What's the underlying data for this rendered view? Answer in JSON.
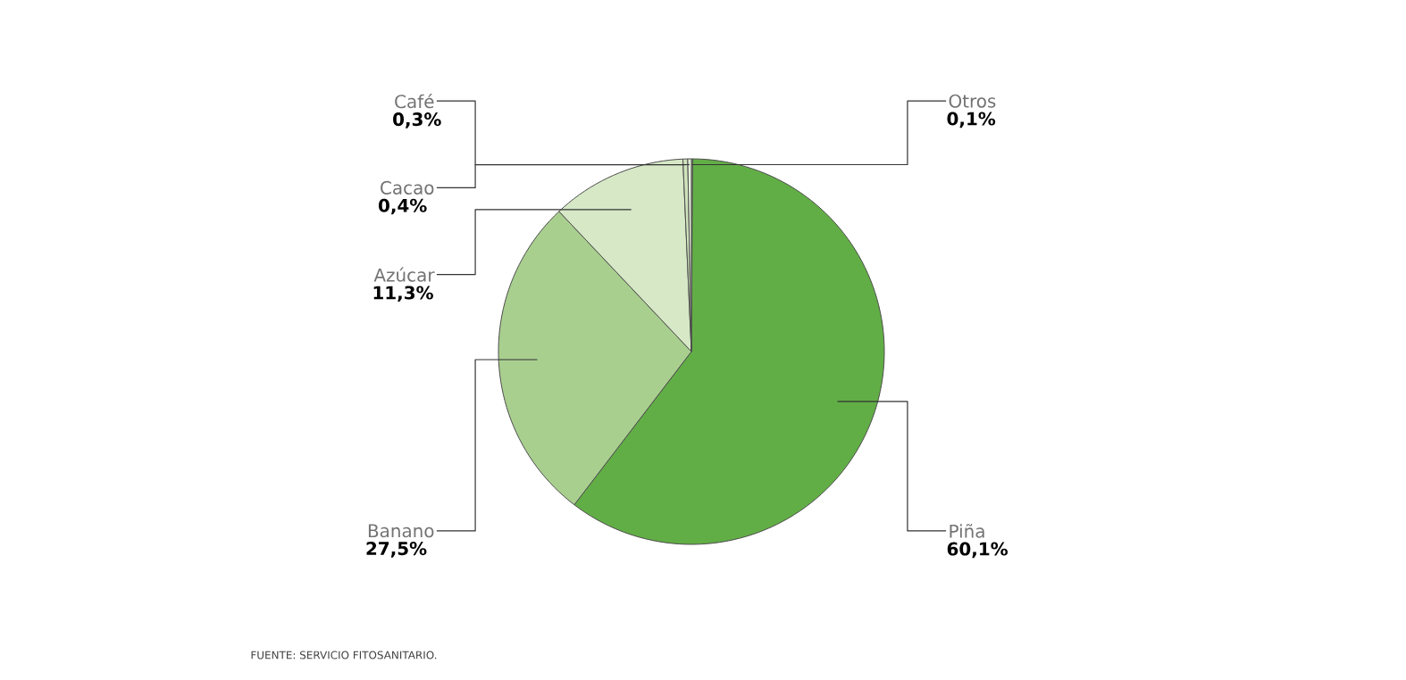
{
  "chart_data": {
    "type": "pie",
    "categories": [
      "Otros",
      "Piña",
      "Banano",
      "Azúcar",
      "Cacao",
      "Café"
    ],
    "values": [
      0.1,
      60.1,
      27.5,
      11.3,
      0.4,
      0.3
    ],
    "value_labels": [
      "0,1%",
      "60,1%",
      "27,5%",
      "11,3%",
      "0,4%",
      "0,3%"
    ],
    "colors": [
      "#e3efd8",
      "#62ae46",
      "#a9cf8f",
      "#d6e8c6",
      "#cfe3bd",
      "#e3efd8"
    ],
    "annotations": [
      "FUENTE: SERVICIO FITOSANITARIO."
    ]
  }
}
